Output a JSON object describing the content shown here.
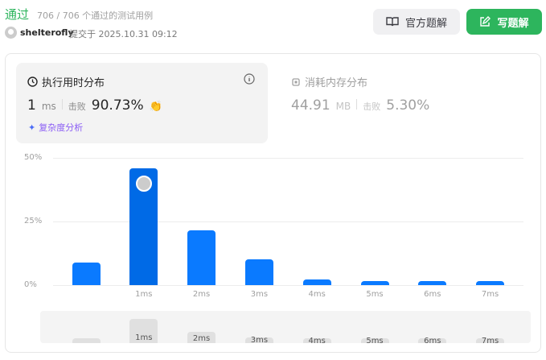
{
  "header": {
    "status": "通过",
    "cases": "706 / 706 个通过的测试用例",
    "username": "shelterofly",
    "submitted": "提交于 2025.10.31 09:12",
    "solution_button": "官方题解",
    "write_button": "写题解"
  },
  "runtime": {
    "title": "执行用时分布",
    "value": "1",
    "unit": "ms",
    "beat_label": "击败",
    "beat": "90.73%",
    "complexity": "复杂度分析"
  },
  "memory": {
    "title": "消耗内存分布",
    "value": "44.91",
    "unit": "MB",
    "beat_label": "击败",
    "beat": "5.30%"
  },
  "colors": {
    "accent": "#2db55d",
    "bar": "#0a7aff",
    "bar_selected": "#006ae6"
  },
  "chart_data": {
    "type": "bar",
    "categories": [
      "",
      "1ms",
      "2ms",
      "3ms",
      "4ms",
      "5ms",
      "6ms",
      "7ms"
    ],
    "values": [
      8.9,
      45.9,
      21.5,
      10.1,
      2.2,
      1.6,
      1.6,
      1.6
    ],
    "selected": "1ms",
    "ylim": [
      0,
      50
    ],
    "yticks": [
      "50%",
      "25%",
      "0%"
    ],
    "grid": true
  }
}
